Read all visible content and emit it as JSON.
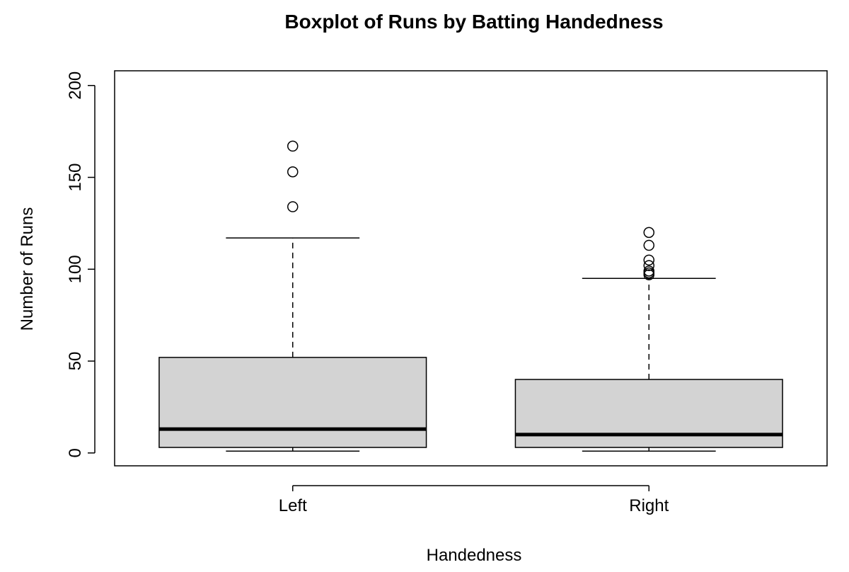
{
  "chart_data": {
    "type": "boxplot",
    "title": "Boxplot of Runs by Batting Handedness",
    "xlabel": "Handedness",
    "ylabel": "Number of Runs",
    "ylim": [
      -7,
      208
    ],
    "y_ticks": [
      0,
      50,
      100,
      150,
      200
    ],
    "categories": [
      "Left",
      "Right"
    ],
    "boxes": [
      {
        "category": "Left",
        "whisker_low": 1,
        "q1": 3,
        "median": 13,
        "q3": 52,
        "whisker_high": 117,
        "outliers": [
          134,
          153,
          167
        ]
      },
      {
        "category": "Right",
        "whisker_low": 1,
        "q1": 3,
        "median": 10,
        "q3": 40,
        "whisker_high": 95,
        "outliers": [
          97,
          98,
          99,
          102,
          105,
          113,
          120
        ]
      }
    ],
    "box_fill": "#d3d3d3",
    "grid": false,
    "legend": "none"
  }
}
